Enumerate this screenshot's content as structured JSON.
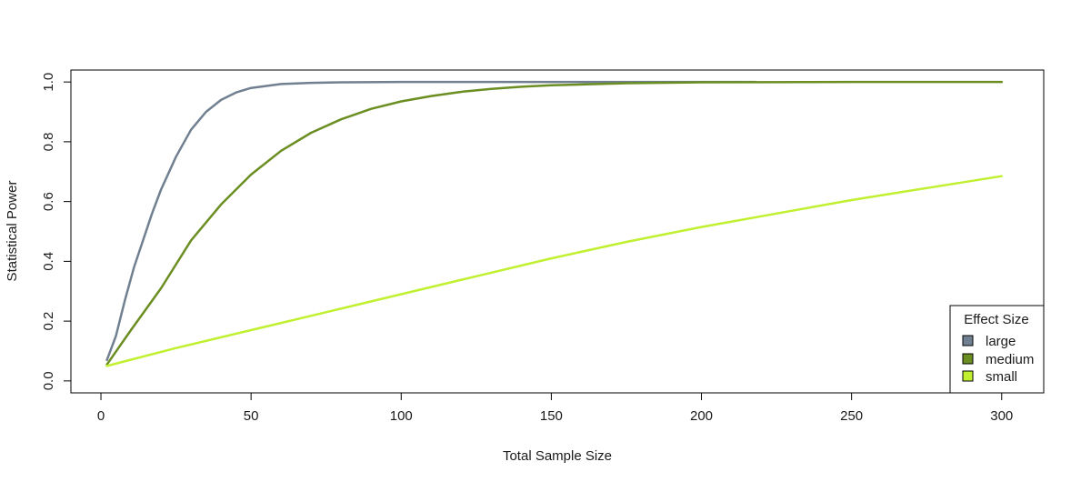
{
  "chart_data": {
    "type": "line",
    "title": "",
    "xlabel": "Total Sample Size",
    "ylabel": "Statistical Power",
    "xlim": [
      -10,
      314
    ],
    "ylim": [
      -0.04,
      1.04
    ],
    "xticks": [
      0,
      50,
      100,
      150,
      200,
      250,
      300
    ],
    "yticks": [
      0.0,
      0.2,
      0.4,
      0.6,
      0.8,
      1.0
    ],
    "xtick_labels": [
      "0",
      "50",
      "100",
      "150",
      "200",
      "250",
      "300"
    ],
    "ytick_labels": [
      "0.0",
      "0.2",
      "0.4",
      "0.6",
      "0.8",
      "1.0"
    ],
    "grid": false,
    "legend": {
      "title": "Effect Size",
      "placement": "bottom-right",
      "entries": [
        "large",
        "medium",
        "small"
      ]
    },
    "series": [
      {
        "name": "large",
        "color": "#708090",
        "x": [
          2,
          5,
          8,
          11,
          14,
          17,
          20,
          25,
          30,
          35,
          40,
          45,
          50,
          60,
          70,
          80,
          100,
          150,
          200,
          218
        ],
        "y": [
          0.07,
          0.15,
          0.27,
          0.38,
          0.47,
          0.56,
          0.64,
          0.75,
          0.84,
          0.9,
          0.94,
          0.965,
          0.98,
          0.993,
          0.997,
          0.999,
          1.0,
          1.0,
          1.0,
          1.0
        ]
      },
      {
        "name": "medium",
        "color": "#6b8e23",
        "x": [
          2,
          10,
          20,
          30,
          40,
          50,
          60,
          70,
          80,
          90,
          100,
          110,
          120,
          130,
          140,
          150,
          175,
          200,
          250,
          300
        ],
        "y": [
          0.055,
          0.17,
          0.31,
          0.47,
          0.59,
          0.69,
          0.77,
          0.83,
          0.875,
          0.91,
          0.935,
          0.953,
          0.967,
          0.977,
          0.984,
          0.989,
          0.996,
          0.999,
          1.0,
          1.0
        ]
      },
      {
        "name": "small",
        "color": "#c0f030",
        "x": [
          2,
          25,
          50,
          75,
          100,
          125,
          150,
          175,
          200,
          225,
          250,
          275,
          300
        ],
        "y": [
          0.05,
          0.11,
          0.17,
          0.23,
          0.29,
          0.35,
          0.41,
          0.465,
          0.515,
          0.56,
          0.605,
          0.645,
          0.685
        ]
      }
    ]
  }
}
